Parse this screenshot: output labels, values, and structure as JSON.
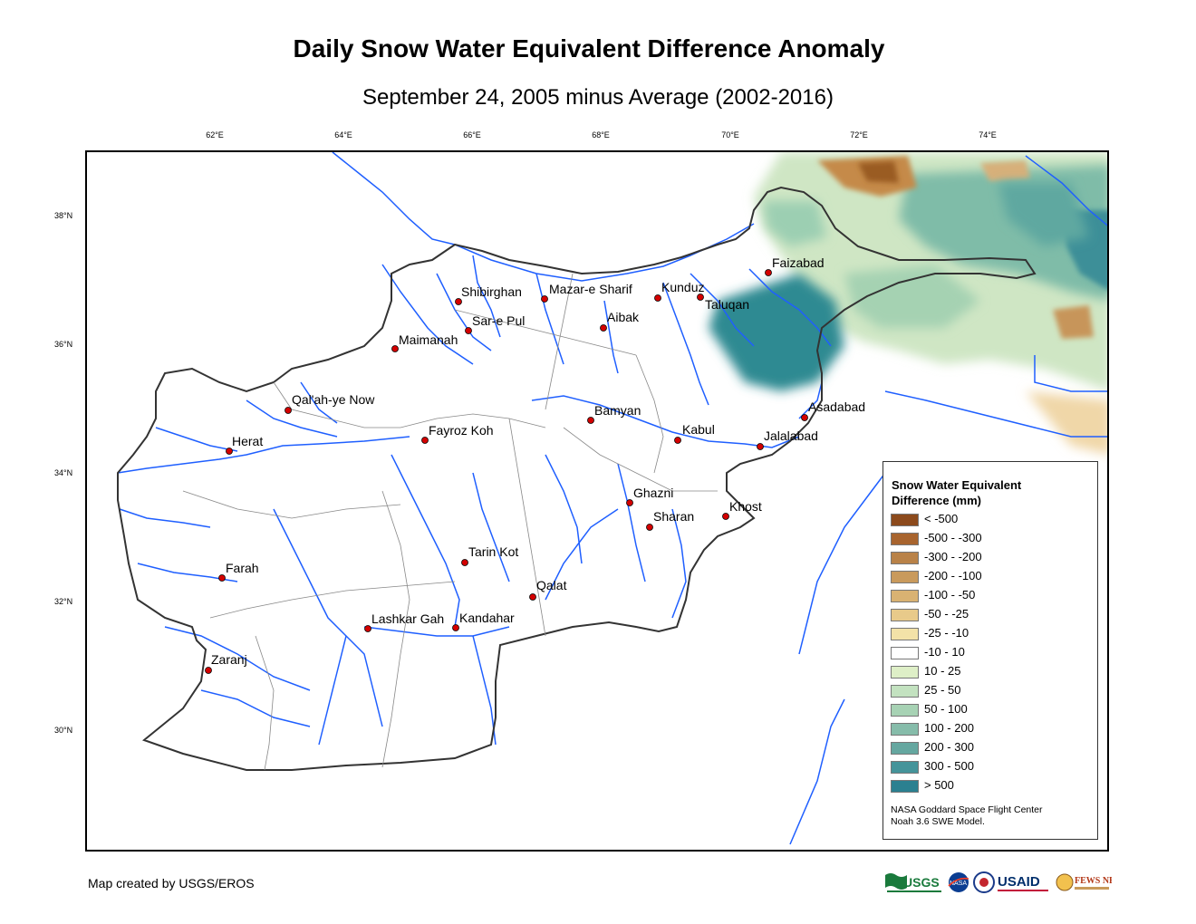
{
  "title": "Daily Snow Water Equivalent Difference Anomaly",
  "subtitle": "September 24, 2005 minus Average (2002-2016)",
  "axes": {
    "lon_labels": [
      "62°E",
      "64°E",
      "66°E",
      "68°E",
      "70°E",
      "72°E",
      "74°E"
    ],
    "lat_labels": [
      "38°N",
      "36°N",
      "34°N",
      "32°N",
      "30°N"
    ]
  },
  "cities": [
    {
      "name": "Faizabad"
    },
    {
      "name": "Shibirghan"
    },
    {
      "name": "Mazar-e Sharif"
    },
    {
      "name": "Kunduz"
    },
    {
      "name": "Taluqan"
    },
    {
      "name": "Sar-e Pul"
    },
    {
      "name": "Aibak"
    },
    {
      "name": "Maimanah"
    },
    {
      "name": "Qal'ah-ye Now"
    },
    {
      "name": "Bamyan"
    },
    {
      "name": "Asadabad"
    },
    {
      "name": "Kabul"
    },
    {
      "name": "Jalalabad"
    },
    {
      "name": "Fayroz Koh"
    },
    {
      "name": "Herat"
    },
    {
      "name": "Ghazni"
    },
    {
      "name": "Khost"
    },
    {
      "name": "Sharan"
    },
    {
      "name": "Tarin Kot"
    },
    {
      "name": "Farah"
    },
    {
      "name": "Qalat"
    },
    {
      "name": "Lashkar Gah"
    },
    {
      "name": "Kandahar"
    },
    {
      "name": "Zaranj"
    }
  ],
  "legend": {
    "title_line1": "Snow Water Equivalent",
    "title_line2": "Difference (mm)",
    "items": [
      {
        "label": "< -500",
        "color": "#8c4a1c"
      },
      {
        "label": "-500 - -300",
        "color": "#a8642e"
      },
      {
        "label": "-300 - -200",
        "color": "#b98248"
      },
      {
        "label": "-200 - -100",
        "color": "#c99a5c"
      },
      {
        "label": "-100 - -50",
        "color": "#d9b272"
      },
      {
        "label": "-50 - -25",
        "color": "#e8ca8a"
      },
      {
        "label": "-25 - -10",
        "color": "#f3e2a8"
      },
      {
        "label": "-10 - 10",
        "color": "#ffffff"
      },
      {
        "label": "10 - 25",
        "color": "#deefc7"
      },
      {
        "label": "25 - 50",
        "color": "#c3e2c0"
      },
      {
        "label": "50 - 100",
        "color": "#a7d2b4"
      },
      {
        "label": "100 - 200",
        "color": "#86bcaa"
      },
      {
        "label": "200 - 300",
        "color": "#65a7a0"
      },
      {
        "label": "300 - 500",
        "color": "#45949a"
      },
      {
        "label": "> 500",
        "color": "#2b8090"
      }
    ],
    "credit_line1": "NASA Goddard Space Flight Center",
    "credit_line2": "Noah 3.6 SWE Model."
  },
  "footer": "Map created by USGS/EROS",
  "logos": {
    "usgs": "USGS",
    "nasa": "NASA",
    "usaid": "USAID",
    "fewsnet": "FEWS NET"
  },
  "colors": {
    "river": "#1f5fff",
    "city_marker": "#d40000",
    "border": "#333333"
  }
}
